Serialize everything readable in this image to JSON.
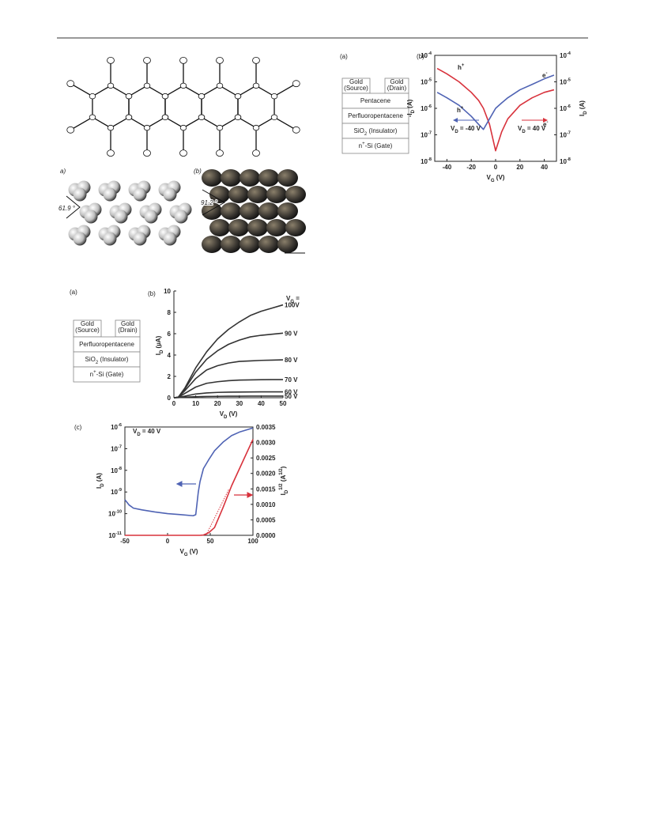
{
  "figures": {
    "crystal": {
      "panel_a": "a)",
      "panel_b": "(b)",
      "angle_a": "61.9 °",
      "angle_b": "91.2 °"
    },
    "device_top": {
      "panel": "(a)",
      "source": [
        "Gold",
        "(Source)"
      ],
      "drain": [
        "Gold",
        "(Drain)"
      ],
      "layers": [
        "Pentacene",
        "Perfluoropentacene",
        [
          "SiO",
          "2",
          " (Insulator)"
        ],
        [
          "n",
          "+",
          "-Si (Gate)"
        ]
      ]
    },
    "device_bottom": {
      "panel": "(a)",
      "source": [
        "Gold",
        "(Source)"
      ],
      "drain": [
        "Gold",
        "(Drain)"
      ],
      "layers": [
        "Perfluoropentacene",
        [
          "SiO",
          "2",
          " (Insulator)"
        ],
        [
          "n",
          "+",
          "-Si (Gate)"
        ]
      ]
    }
  },
  "chart_data": [
    {
      "type": "line",
      "panel": "(b)",
      "x": [
        -48,
        -40,
        -30,
        -20,
        -14,
        -10,
        -5,
        0,
        5,
        10,
        20,
        30,
        40,
        48
      ],
      "series": [
        {
          "color": "#d8323c",
          "axis": "y2",
          "values": [
            3.2e-05,
            2e-05,
            1e-05,
            4e-06,
            2e-06,
            1e-06,
            2.5e-07,
            2.5e-08,
            1.3e-07,
            4e-07,
            1.3e-06,
            2.5e-06,
            4e-06,
            5e-06
          ]
        },
        {
          "color": "#4f63b4",
          "values": [
            4e-06,
            2.5e-06,
            1.3e-06,
            5e-07,
            2.5e-07,
            1.6e-07,
            4e-07,
            1e-06,
            1.6e-06,
            2.5e-06,
            5e-06,
            8e-06,
            1.3e-05,
            1.8e-05
          ]
        }
      ],
      "xlim": [
        -50,
        50
      ],
      "xticks": [
        -40,
        -20,
        0,
        20,
        40
      ],
      "yscale": "log",
      "ylim": [
        1e-08,
        0.0001
      ],
      "yticks": [
        {
          "value": 1e-08,
          "label": "10",
          "exponent": "-8"
        },
        {
          "value": 1e-07,
          "label": "10",
          "exponent": "-7"
        },
        {
          "value": 1e-06,
          "label": "10",
          "exponent": "-6"
        },
        {
          "value": 1e-05,
          "label": "10",
          "exponent": "-5"
        },
        {
          "value": 0.0001,
          "label": "10",
          "exponent": "-4"
        }
      ],
      "y2scale": "log",
      "y2lim": [
        1e-08,
        0.0001
      ],
      "y2ticks": [
        {
          "value": 1e-08,
          "label": "10",
          "exponent": "-8"
        },
        {
          "value": 1e-07,
          "label": "10",
          "exponent": "-7"
        },
        {
          "value": 1e-06,
          "label": "10",
          "exponent": "-6"
        },
        {
          "value": 1e-05,
          "label": "10",
          "exponent": "-5"
        },
        {
          "value": 0.0001,
          "label": "10",
          "exponent": "-4"
        }
      ],
      "xlabel": [
        "V",
        "G",
        " (V)"
      ],
      "ylabel": [
        "-I",
        "D",
        " (A)"
      ],
      "y2label": [
        "I",
        "D",
        " (A)"
      ],
      "annotations": [
        [
          "h",
          "+"
        ],
        [
          "h",
          "+"
        ],
        [
          "e",
          "-"
        ],
        [
          "e",
          "-"
        ],
        [
          "V",
          "D",
          " = -40 V"
        ],
        [
          "V",
          "D",
          " = 40 V"
        ]
      ]
    },
    {
      "type": "line",
      "panel": "(b)",
      "x": [
        0,
        2,
        5,
        10,
        15,
        20,
        25,
        30,
        35,
        40,
        45,
        50
      ],
      "series": [
        {
          "name": "100V",
          "color": "#333333",
          "values": [
            0,
            0.05,
            0.9,
            2.8,
            4.3,
            5.5,
            6.4,
            7.1,
            7.7,
            8.1,
            8.4,
            8.7
          ]
        },
        {
          "name": "90 V",
          "color": "#333333",
          "values": [
            0,
            0.05,
            0.8,
            2.4,
            3.6,
            4.4,
            5.0,
            5.4,
            5.7,
            5.85,
            5.95,
            6.05
          ]
        },
        {
          "name": "80 V",
          "color": "#333333",
          "values": [
            0,
            0.04,
            0.65,
            1.8,
            2.6,
            3.0,
            3.25,
            3.4,
            3.45,
            3.5,
            3.52,
            3.55
          ]
        },
        {
          "name": "70 V",
          "color": "#333333",
          "values": [
            0,
            0.03,
            0.4,
            1.0,
            1.35,
            1.5,
            1.6,
            1.65,
            1.67,
            1.69,
            1.7,
            1.7
          ]
        },
        {
          "name": "60 V",
          "color": "#333333",
          "values": [
            0,
            0.02,
            0.15,
            0.35,
            0.45,
            0.5,
            0.52,
            0.53,
            0.54,
            0.55,
            0.55,
            0.55
          ]
        },
        {
          "name": "50 V",
          "color": "#333333",
          "values": [
            0,
            0.01,
            0.05,
            0.1,
            0.12,
            0.13,
            0.14,
            0.14,
            0.15,
            0.15,
            0.15,
            0.15
          ]
        }
      ],
      "xlim": [
        0,
        50
      ],
      "xticks": [
        0,
        10,
        20,
        30,
        40,
        50
      ],
      "ylim": [
        0,
        10
      ],
      "yticks": [
        0,
        2,
        4,
        6,
        8,
        10
      ],
      "xlabel": [
        "V",
        "D",
        " (V)"
      ],
      "ylabel": [
        "I",
        "D",
        " (µA)"
      ],
      "legend_title": [
        "V",
        "G",
        " ="
      ]
    },
    {
      "type": "line",
      "panel": "(c)",
      "series": [
        {
          "color": "#4f63b4",
          "x": [
            -50,
            -45,
            -40,
            -30,
            -15,
            0,
            15,
            30,
            33,
            36,
            38,
            42,
            48,
            55,
            65,
            75,
            85,
            100
          ],
          "values": [
            4.4e-10,
            2.5e-10,
            1.8e-10,
            1.5e-10,
            1.2e-10,
            1e-10,
            9e-11,
            8e-11,
            9e-11,
            1e-09,
            3e-09,
            1.2e-08,
            3e-08,
            8e-08,
            2e-07,
            4e-07,
            6e-07,
            9e-07
          ]
        },
        {
          "color": "#d8323c",
          "axis": "y2",
          "x": [
            -50,
            -30,
            0,
            30,
            38,
            42,
            48,
            55,
            65,
            75,
            85,
            100
          ],
          "values": [
            0,
            0,
            0,
            0,
            0,
            1e-05,
            8e-05,
            0.00025,
            0.0009,
            0.0016,
            0.0022,
            0.0031
          ]
        },
        {
          "color": "#d8323c",
          "axis": "y2",
          "style": "dotted",
          "x": [
            45,
            72
          ],
          "values": [
            0,
            0.0015
          ]
        }
      ],
      "xlim": [
        -50,
        100
      ],
      "xticks": [
        -50,
        0,
        50,
        100
      ],
      "yscale": "log",
      "ylim": [
        1e-11,
        1e-06
      ],
      "yticks": [
        {
          "value": 1e-11,
          "label": "10",
          "exponent": "-11"
        },
        {
          "value": 1e-10,
          "label": "10",
          "exponent": "-10"
        },
        {
          "value": 1e-09,
          "label": "10",
          "exponent": "-9"
        },
        {
          "value": 1e-08,
          "label": "10",
          "exponent": "-8"
        },
        {
          "value": 1e-07,
          "label": "10",
          "exponent": "-7"
        },
        {
          "value": 1e-06,
          "label": "10",
          "exponent": "-6"
        }
      ],
      "y2lim": [
        0,
        0.0035
      ],
      "y2ticks": [
        {
          "value": 0,
          "label": "0.0000"
        },
        {
          "value": 0.0005,
          "label": "0.0005"
        },
        {
          "value": 0.001,
          "label": "0.0010"
        },
        {
          "value": 0.0015,
          "label": "0.0015"
        },
        {
          "value": 0.002,
          "label": "0.0020"
        },
        {
          "value": 0.0025,
          "label": "0.0025"
        },
        {
          "value": 0.003,
          "label": "0.0030"
        },
        {
          "value": 0.0035,
          "label": "0.0035"
        }
      ],
      "xlabel": [
        "V",
        "G",
        " (V)"
      ],
      "ylabel": [
        "I",
        "D",
        " (A)"
      ],
      "y2label": [
        "I",
        "D",
        "1/2",
        " (A",
        "1/2",
        ")"
      ],
      "annotations": [
        [
          "V",
          "D",
          " = 40 V"
        ]
      ]
    }
  ]
}
